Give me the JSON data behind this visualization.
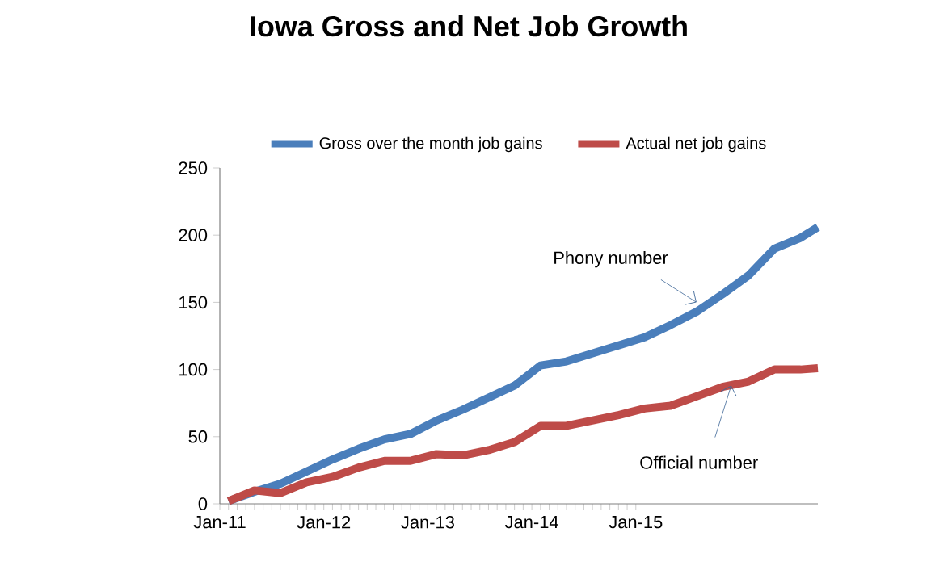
{
  "chart_data": {
    "type": "line",
    "title": "Iowa Gross and Net Job Growth",
    "x": [
      "2011-02",
      "2011-05",
      "2011-08",
      "2011-11",
      "2012-02",
      "2012-05",
      "2012-08",
      "2012-11",
      "2013-02",
      "2013-05",
      "2013-08",
      "2013-11",
      "2014-02",
      "2014-05",
      "2014-08",
      "2014-11",
      "2015-02",
      "2015-05",
      "2015-08",
      "2015-11",
      "2016-02",
      "2016-05",
      "2016-08",
      "2016-10"
    ],
    "series": [
      {
        "name": "Gross over the month job gains",
        "color": "#4a7ebb",
        "values": [
          2,
          9,
          15,
          24,
          33,
          41,
          48,
          52,
          62,
          70,
          79,
          88,
          103,
          106,
          112,
          118,
          124,
          133,
          143,
          156,
          170,
          190,
          198,
          206
        ]
      },
      {
        "name": "Actual net job gains",
        "color": "#be4b48",
        "values": [
          2,
          10,
          8,
          16,
          20,
          27,
          32,
          32,
          37,
          36,
          40,
          46,
          58,
          58,
          62,
          66,
          71,
          73,
          80,
          87,
          91,
          100,
          100,
          101
        ]
      }
    ],
    "xlim": [
      "2011-01",
      "2016-10"
    ],
    "xticks": [
      {
        "value": "2011-01",
        "label": "Jan-11"
      },
      {
        "value": "2012-01",
        "label": "Jan-12"
      },
      {
        "value": "2013-01",
        "label": "Jan-13"
      },
      {
        "value": "2014-01",
        "label": "Jan-14"
      },
      {
        "value": "2015-01",
        "label": "Jan-15"
      }
    ],
    "ylim": [
      0,
      250
    ],
    "yticks": [
      0,
      50,
      100,
      150,
      200,
      250
    ],
    "grid": false,
    "legend": "top",
    "marker": "none",
    "line_style": "solid",
    "annotations": [
      {
        "text": "Phony number",
        "x": "2015-08",
        "y": 150
      },
      {
        "text": "Official number",
        "x": "2015-12",
        "y": 88
      }
    ]
  }
}
